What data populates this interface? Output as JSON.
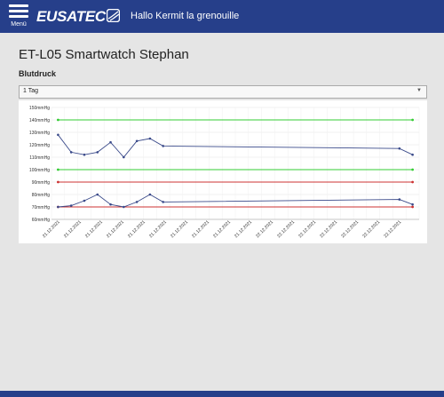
{
  "header": {
    "menu_label": "Menü",
    "logo_text": "EUSATEC",
    "greeting": "Hallo Kermit la grenouille"
  },
  "page": {
    "title": "ET-L05 Smartwatch Stephan",
    "section": "Blutdruck"
  },
  "range_select": {
    "value": "1 Tag",
    "options": [
      "1 Tag"
    ]
  },
  "colors": {
    "brand": "#263f8a",
    "series": "#3a4a8a",
    "threshold_green": "#33cc33",
    "threshold_red": "#cc3333"
  },
  "chart_data": {
    "type": "line",
    "ylim": [
      60,
      150
    ],
    "y_ticks": [
      "60mmHg",
      "70mmHg",
      "80mmHg",
      "90mmHg",
      "100mmHg",
      "110mmHg",
      "120mmHg",
      "130mmHg",
      "140mmHg",
      "150mmHg"
    ],
    "x_labels": [
      "21.12.2021",
      "21.12.2021",
      "21.12.2021",
      "21.12.2021",
      "21.12.2021",
      "21.12.2021",
      "21.12.2021",
      "21.12.2021",
      "21.12.2021",
      "21.12.2021",
      "22.12.2021",
      "22.12.2021",
      "22.12.2021",
      "22.12.2021",
      "22.12.2021",
      "22.12.2021",
      "22.12.2021"
    ],
    "series": [
      {
        "role": "systolic",
        "points": [
          [
            0,
            128
          ],
          [
            1,
            114
          ],
          [
            2,
            112
          ],
          [
            3,
            114
          ],
          [
            4,
            122
          ],
          [
            5,
            110
          ],
          [
            6,
            123
          ],
          [
            7,
            125
          ],
          [
            8,
            119
          ],
          [
            26,
            117
          ],
          [
            27,
            112
          ]
        ]
      },
      {
        "role": "diastolic",
        "points": [
          [
            0,
            70
          ],
          [
            1,
            71
          ],
          [
            2,
            75
          ],
          [
            3,
            80
          ],
          [
            4,
            72
          ],
          [
            5,
            70
          ],
          [
            6,
            74
          ],
          [
            7,
            80
          ],
          [
            8,
            74
          ],
          [
            26,
            76
          ],
          [
            27,
            72
          ]
        ]
      }
    ],
    "thresholds": [
      {
        "value": 140,
        "color": "#33cc33"
      },
      {
        "value": 100,
        "color": "#33cc33"
      },
      {
        "value": 90,
        "color": "#cc3333"
      },
      {
        "value": 70,
        "color": "#cc3333"
      }
    ]
  }
}
